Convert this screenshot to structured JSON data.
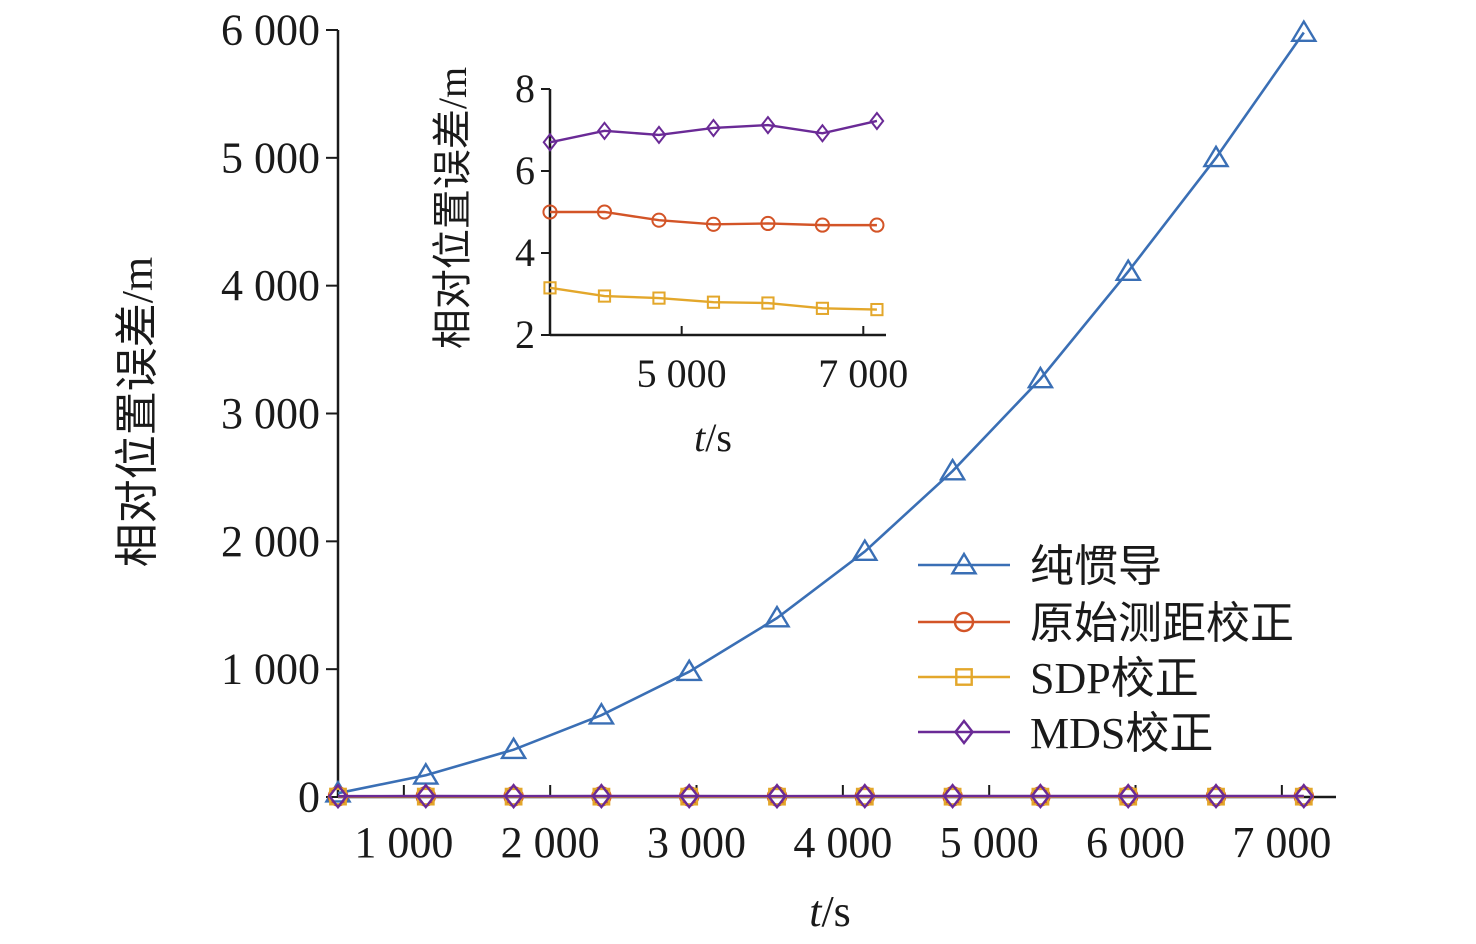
{
  "colors": {
    "blue": "#3a6fb5",
    "red": "#d35427",
    "orange": "#e3a72b",
    "purple": "#6a2a96",
    "axis": "#1a1a1a"
  },
  "chart_data": [
    {
      "type": "line",
      "x": [
        550,
        1150,
        1750,
        2350,
        2950,
        3550,
        4150,
        4750,
        5350,
        5950,
        6550,
        7150
      ],
      "xlabel": "t/s",
      "ylabel": "相对位置误差/m",
      "xticks": [
        1000,
        2000,
        3000,
        4000,
        5000,
        6000,
        7000
      ],
      "xtick_labels": [
        "1 000",
        "2 000",
        "3 000",
        "4 000",
        "5 000",
        "6 000",
        "7 000"
      ],
      "yticks": [
        0,
        1000,
        2000,
        3000,
        4000,
        5000,
        6000
      ],
      "ytick_labels": [
        "0",
        "1 000",
        "2 000",
        "3 000",
        "4 000",
        "5 000",
        "6 000"
      ],
      "xlim": [
        550,
        7370
      ],
      "ylim": [
        0,
        6000
      ],
      "legend_position": "right",
      "series": [
        {
          "name": "纯惯导",
          "marker": "triangle",
          "color": "#3a6fb5",
          "values": [
            30,
            170,
            370,
            640,
            980,
            1400,
            1920,
            2550,
            3270,
            4110,
            5000,
            5980
          ]
        },
        {
          "name": "原始测距校正",
          "marker": "circle",
          "color": "#d35427",
          "values": [
            5.0,
            5.0,
            4.8,
            4.7,
            4.7,
            4.7,
            4.7,
            4.7,
            4.7,
            4.7,
            4.7,
            4.7
          ]
        },
        {
          "name": "SDP校正",
          "marker": "square",
          "color": "#e3a72b",
          "values": [
            3.2,
            3.0,
            2.9,
            2.8,
            2.8,
            2.7,
            2.7,
            2.7,
            2.7,
            2.7,
            2.7,
            2.7
          ]
        },
        {
          "name": "MDS校正",
          "marker": "diamond",
          "color": "#6a2a96",
          "values": [
            6.7,
            7.0,
            6.9,
            7.0,
            7.1,
            6.9,
            7.2,
            7.2,
            7.2,
            7.2,
            7.2,
            7.2
          ]
        }
      ]
    },
    {
      "type": "line",
      "x": [
        3550,
        4150,
        4750,
        5350,
        5950,
        6550,
        7150
      ],
      "xlabel": "t/s",
      "ylabel": "相对位置误差/m",
      "xticks": [
        5000,
        7000
      ],
      "xtick_labels": [
        "5 000",
        "7 000"
      ],
      "yticks": [
        2,
        4,
        6,
        8
      ],
      "ytick_labels": [
        "2",
        "4",
        "6",
        "8"
      ],
      "xlim": [
        3550,
        7250
      ],
      "ylim": [
        2,
        8
      ],
      "series": [
        {
          "name": "原始测距校正",
          "marker": "circle",
          "color": "#d35427",
          "values": [
            5.0,
            5.0,
            4.8,
            4.7,
            4.72,
            4.68,
            4.68
          ]
        },
        {
          "name": "SDP校正",
          "marker": "square",
          "color": "#e3a72b",
          "values": [
            3.15,
            2.95,
            2.9,
            2.8,
            2.78,
            2.65,
            2.62
          ]
        },
        {
          "name": "MDS校正",
          "marker": "diamond",
          "color": "#6a2a96",
          "values": [
            6.7,
            6.98,
            6.88,
            7.05,
            7.12,
            6.92,
            7.22
          ]
        }
      ]
    }
  ]
}
